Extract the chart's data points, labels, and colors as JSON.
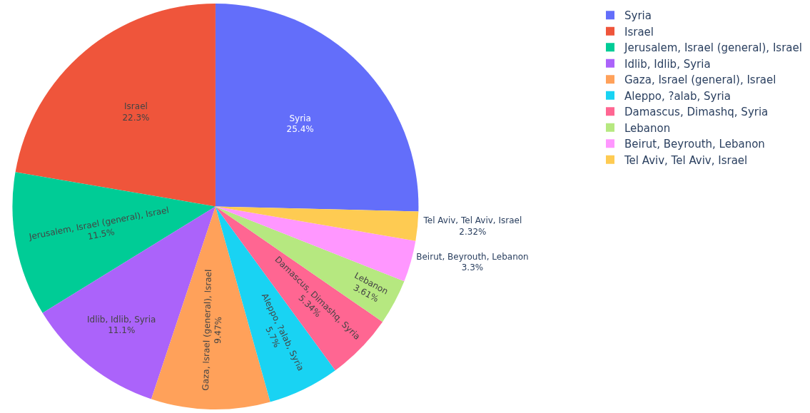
{
  "chart_data": {
    "type": "pie",
    "categories": [
      "Syria",
      "Israel",
      "Jerusalem, Israel (general), Israel",
      "Idlib, Idlib, Syria",
      "Gaza, Israel (general), Israel",
      "Aleppo, ?alab, Syria",
      "Damascus, Dimashq, Syria",
      "Lebanon",
      "Beirut, Beyrouth, Lebanon",
      "Tel Aviv, Tel Aviv, Israel"
    ],
    "values": [
      25.4,
      22.3,
      11.5,
      11.1,
      9.47,
      5.7,
      5.34,
      3.61,
      3.3,
      2.32
    ],
    "value_labels": [
      "25.4%",
      "22.3%",
      "11.5%",
      "11.1%",
      "9.47%",
      "5.7%",
      "5.34%",
      "3.61%",
      "3.3%",
      "2.32%"
    ],
    "colors": [
      "#636efa",
      "#ef553b",
      "#00cc96",
      "#ab63fa",
      "#ffa15a",
      "#19d3f3",
      "#ff6692",
      "#b6e880",
      "#ff97ff",
      "#fecb52"
    ],
    "legend": "top right"
  }
}
